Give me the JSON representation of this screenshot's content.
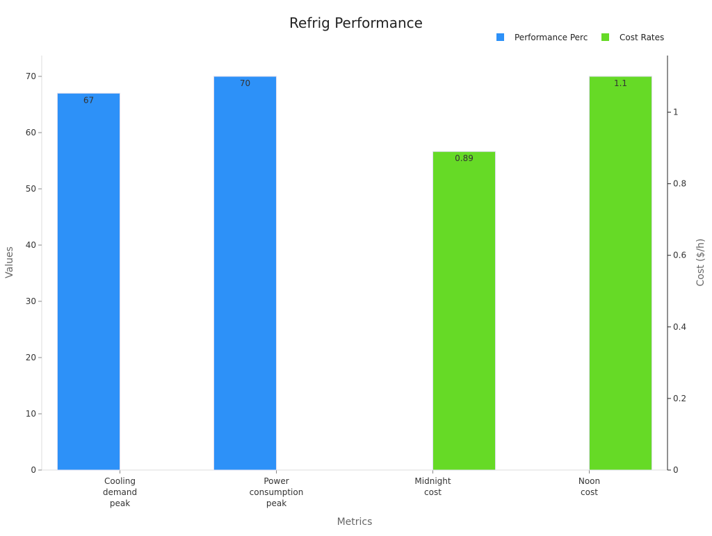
{
  "chart_data": {
    "type": "bar",
    "title": "Refrig Performance",
    "xlabel": "Metrics",
    "ylabel": "Values",
    "y2label": "Cost ($/h)",
    "categories": [
      "Cooling demand peak",
      "Power consumption peak",
      "Midnight cost",
      "Noon cost"
    ],
    "category_lines": [
      [
        "Cooling",
        "demand",
        "peak"
      ],
      [
        "Power",
        "consumption",
        "peak"
      ],
      [
        "Midnight",
        "cost"
      ],
      [
        "Noon",
        "cost"
      ]
    ],
    "ylim": [
      0,
      70
    ],
    "yticks": [
      0,
      10,
      20,
      30,
      40,
      50,
      60,
      70
    ],
    "y2lim": [
      0,
      1.1
    ],
    "y2ticks": [
      0,
      0.2,
      0.4,
      0.6,
      0.8,
      1
    ],
    "y2ticklabels": [
      "0",
      "0.2",
      "0.4",
      "0.6",
      "0.8",
      "1"
    ],
    "legend_position": "top-right",
    "grid": false,
    "series": [
      {
        "name": "Performance Perc",
        "axis": "left",
        "color": "#2d91f8",
        "values": [
          67,
          70,
          null,
          null
        ],
        "labels": [
          "67",
          "70",
          "",
          ""
        ]
      },
      {
        "name": "Cost Rates",
        "axis": "right",
        "color": "#66da26",
        "values": [
          null,
          null,
          0.89,
          1.1
        ],
        "labels": [
          "",
          "",
          "0.89",
          "1.1"
        ]
      }
    ]
  }
}
